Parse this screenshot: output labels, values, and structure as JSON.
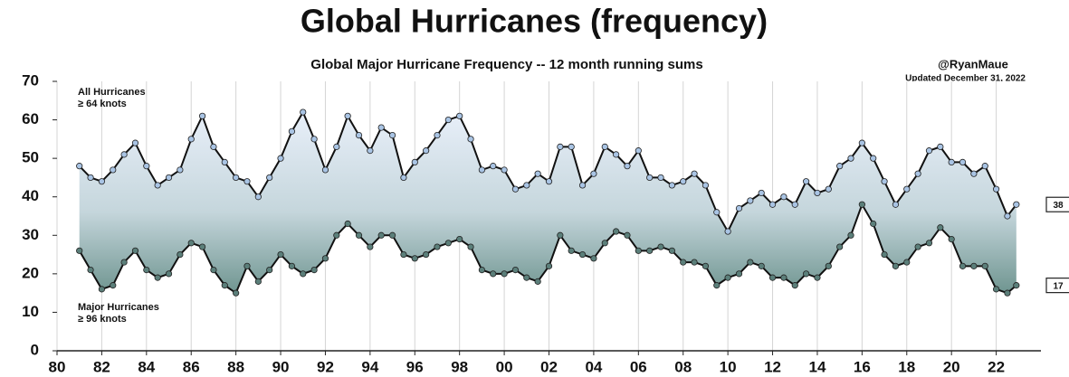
{
  "chart_data": {
    "type": "line",
    "title": "Global Hurricanes (frequency)",
    "subtitle": "Global Major Hurricane Frequency -- 12 month running sums",
    "credit": "@RyanMaue",
    "updated": "Updated December 31, 2022",
    "annotations": [
      "All Hurricanes",
      "≥ 64 knots",
      "Major Hurricanes",
      "≥ 96 knots"
    ],
    "x": [
      1981.0,
      1981.5,
      1982.0,
      1982.5,
      1983.0,
      1983.5,
      1984.0,
      1984.5,
      1985.0,
      1985.5,
      1986.0,
      1986.5,
      1987.0,
      1987.5,
      1988.0,
      1988.5,
      1989.0,
      1989.5,
      1990.0,
      1990.5,
      1991.0,
      1991.5,
      1992.0,
      1992.5,
      1993.0,
      1993.5,
      1994.0,
      1994.5,
      1995.0,
      1995.5,
      1996.0,
      1996.5,
      1997.0,
      1997.5,
      1998.0,
      1998.5,
      1999.0,
      1999.5,
      2000.0,
      2000.5,
      2001.0,
      2001.5,
      2002.0,
      2002.5,
      2003.0,
      2003.5,
      2004.0,
      2004.5,
      2005.0,
      2005.5,
      2006.0,
      2006.5,
      2007.0,
      2007.5,
      2008.0,
      2008.5,
      2009.0,
      2009.5,
      2010.0,
      2010.5,
      2011.0,
      2011.5,
      2012.0,
      2012.5,
      2013.0,
      2013.5,
      2014.0,
      2014.5,
      2015.0,
      2015.5,
      2016.0,
      2016.5,
      2017.0,
      2017.5,
      2018.0,
      2018.5,
      2019.0,
      2019.5,
      2020.0,
      2020.5,
      2021.0,
      2021.5,
      2022.0,
      2022.5,
      2022.9
    ],
    "series": [
      {
        "name": "All Hurricanes",
        "color": "#a9c4e4",
        "values": [
          48,
          45,
          44,
          47,
          51,
          54,
          48,
          43,
          45,
          47,
          55,
          61,
          53,
          49,
          45,
          44,
          40,
          45,
          50,
          57,
          62,
          55,
          47,
          53,
          61,
          56,
          52,
          58,
          56,
          45,
          49,
          52,
          56,
          60,
          61,
          55,
          47,
          48,
          47,
          42,
          43,
          46,
          44,
          53,
          53,
          43,
          46,
          53,
          51,
          48,
          52,
          45,
          45,
          43,
          44,
          46,
          43,
          36,
          31,
          37,
          39,
          41,
          38,
          40,
          38,
          44,
          41,
          42,
          48,
          50,
          54,
          50,
          44,
          38,
          42,
          46,
          52,
          53,
          49,
          49,
          46,
          48,
          42,
          35,
          38
        ]
      },
      {
        "name": "Major Hurricanes",
        "color": "#5b7f7a",
        "values": [
          26,
          21,
          16,
          17,
          23,
          26,
          21,
          19,
          20,
          25,
          28,
          27,
          21,
          17,
          15,
          22,
          18,
          21,
          25,
          22,
          20,
          21,
          24,
          30,
          33,
          30,
          27,
          30,
          30,
          25,
          24,
          25,
          27,
          28,
          29,
          27,
          21,
          20,
          20,
          21,
          19,
          18,
          22,
          30,
          26,
          25,
          24,
          28,
          31,
          30,
          26,
          26,
          27,
          26,
          23,
          23,
          22,
          17,
          19,
          20,
          23,
          22,
          19,
          19,
          17,
          20,
          19,
          22,
          27,
          30,
          38,
          33,
          25,
          22,
          23,
          27,
          28,
          32,
          29,
          22,
          22,
          22,
          16,
          15,
          17
        ]
      }
    ],
    "xlim": [
      1980,
      2024
    ],
    "xticks": [
      {
        "value": 1980,
        "label": "80"
      },
      {
        "value": 1982,
        "label": "82"
      },
      {
        "value": 1984,
        "label": "84"
      },
      {
        "value": 1986,
        "label": "86"
      },
      {
        "value": 1988,
        "label": "88"
      },
      {
        "value": 1990,
        "label": "90"
      },
      {
        "value": 1992,
        "label": "92"
      },
      {
        "value": 1994,
        "label": "94"
      },
      {
        "value": 1996,
        "label": "96"
      },
      {
        "value": 1998,
        "label": "98"
      },
      {
        "value": 2000,
        "label": "00"
      },
      {
        "value": 2002,
        "label": "02"
      },
      {
        "value": 2004,
        "label": "04"
      },
      {
        "value": 2006,
        "label": "06"
      },
      {
        "value": 2008,
        "label": "08"
      },
      {
        "value": 2010,
        "label": "10"
      },
      {
        "value": 2012,
        "label": "12"
      },
      {
        "value": 2014,
        "label": "14"
      },
      {
        "value": 2016,
        "label": "16"
      },
      {
        "value": 2018,
        "label": "18"
      },
      {
        "value": 2020,
        "label": "20"
      },
      {
        "value": 2022,
        "label": "22"
      }
    ],
    "ylim": [
      0,
      70
    ],
    "yticks": [
      0,
      10,
      20,
      30,
      40,
      50,
      60,
      70
    ],
    "grid": "x"
  }
}
